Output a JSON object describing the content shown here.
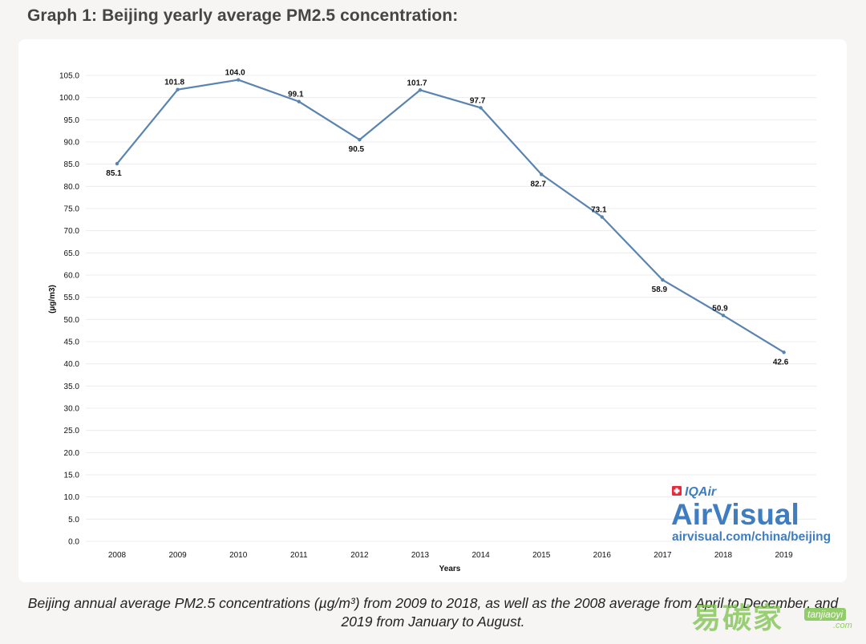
{
  "page": {
    "title": "Graph 1: Beijing yearly average PM2.5 concentration:",
    "caption": "Beijing annual average PM2.5 concentrations (µg/m³) from 2009 to 2018, as well as the 2008 average from April to December, and 2019 from January to August."
  },
  "branding": {
    "iqair": "IQAir",
    "airvisual": "AirVisual",
    "url": "airvisual.com/china/beijing",
    "color": "#3d7dc0",
    "swiss_flag_color": "#e8283b"
  },
  "watermark": {
    "chinese": "易碳家",
    "site": "tanjiaoyi",
    "suffix": ".com"
  },
  "chart_data": {
    "type": "line",
    "categories": [
      "2008",
      "2009",
      "2010",
      "2011",
      "2012",
      "2013",
      "2014",
      "2015",
      "2016",
      "2017",
      "2018",
      "2019"
    ],
    "series": [
      {
        "values": [
          85.1,
          101.8,
          104.0,
          99.1,
          90.5,
          101.7,
          97.7,
          82.7,
          73.1,
          58.9,
          50.9,
          42.6
        ],
        "color": "#5a84b0"
      }
    ],
    "value_labels": [
      "85.1",
      "101.8",
      "104.0",
      "99.1",
      "90.5",
      "101.7",
      "97.7",
      "82.7",
      "73.1",
      "58.9",
      "50.9",
      "42.6"
    ],
    "label_side": [
      "below",
      "above",
      "above",
      "above",
      "below",
      "above",
      "above",
      "below",
      "above",
      "below",
      "above",
      "below"
    ],
    "xlabel": "Years",
    "ylabel": "(µg/m3)",
    "ylim": [
      0,
      105
    ],
    "yticks": [
      "0.0",
      "5.0",
      "10.0",
      "15.0",
      "20.0",
      "25.0",
      "30.0",
      "35.0",
      "40.0",
      "45.0",
      "50.0",
      "55.0",
      "60.0",
      "65.0",
      "70.0",
      "75.0",
      "80.0",
      "85.0",
      "90.0",
      "95.0",
      "100.0",
      "105.0"
    ],
    "grid": true,
    "legend": "none"
  }
}
